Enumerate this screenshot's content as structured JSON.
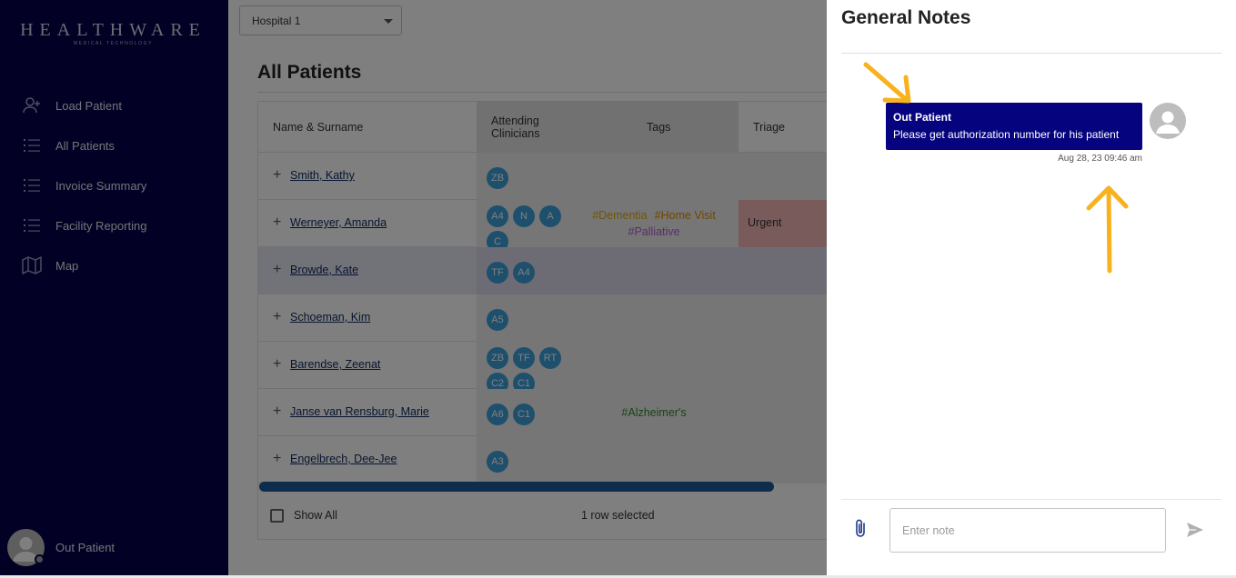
{
  "brand": {
    "name": "HEALTHWARE",
    "tagline": "MEDICAL TECHNOLOGY"
  },
  "sidebar": {
    "items": [
      {
        "label": "Load Patient",
        "icon": "add-user-icon"
      },
      {
        "label": "All Patients",
        "icon": "list-icon"
      },
      {
        "label": "Invoice Summary",
        "icon": "list-icon"
      },
      {
        "label": "Facility Reporting",
        "icon": "list-icon"
      },
      {
        "label": "Map",
        "icon": "map-icon"
      }
    ],
    "user": {
      "name": "Out Patient"
    }
  },
  "main": {
    "hospital_select": "Hospital 1",
    "title": "All Patients",
    "columns": {
      "name": "Name & Surname",
      "clinicians": "Attending Clinicians",
      "tags": "Tags",
      "triage": "Triage"
    },
    "rows": [
      {
        "name": "Smith, Kathy",
        "clinicians": [
          "ZB"
        ],
        "tags": [],
        "triage": "",
        "selected": false
      },
      {
        "name": "Werneyer, Amanda",
        "clinicians": [
          "A4",
          "N",
          "A",
          "C"
        ],
        "tags": [
          {
            "text": "#Dementia",
            "color": "#e5a800"
          },
          {
            "text": "#Home Visit",
            "color": "#e58a00"
          },
          {
            "text": "#Palliative",
            "color": "#b05bd6"
          }
        ],
        "triage": "Urgent",
        "triage_color": "#f3b7b7",
        "selected": false
      },
      {
        "name": "Browde, Kate",
        "clinicians": [
          "TF",
          "A4"
        ],
        "tags": [],
        "triage": "",
        "selected": true
      },
      {
        "name": "Schoeman, Kim",
        "clinicians": [
          "A5"
        ],
        "tags": [],
        "triage": "",
        "selected": false
      },
      {
        "name": "Barendse, Zeenat",
        "clinicians": [
          "ZB",
          "TF",
          "RT",
          "C2",
          "C1"
        ],
        "tags": [],
        "triage": "",
        "selected": false
      },
      {
        "name": "Janse van Rensburg, Marie",
        "clinicians": [
          "A6",
          "C1"
        ],
        "tags": [
          {
            "text": "#Alzheimer's",
            "color": "#2e8b2e"
          }
        ],
        "triage": "",
        "selected": false
      },
      {
        "name": "Engelbrech, Dee-Jee",
        "clinicians": [
          "A3"
        ],
        "tags": [],
        "triage": "",
        "selected": false
      }
    ],
    "footer": {
      "show_all": "Show All",
      "selected": "1 row selected"
    }
  },
  "notes_panel": {
    "title": "General Notes",
    "note": {
      "title": "Out Patient",
      "text": "Please get authorization number for his patient",
      "time": "Aug 28, 23 09:46 am"
    },
    "input_placeholder": "Enter note"
  },
  "colors": {
    "sidebar": "#05034a",
    "note_bubble": "#05047e",
    "chip": "#3d9ed8",
    "annotation_arrow": "#f7b21e"
  }
}
